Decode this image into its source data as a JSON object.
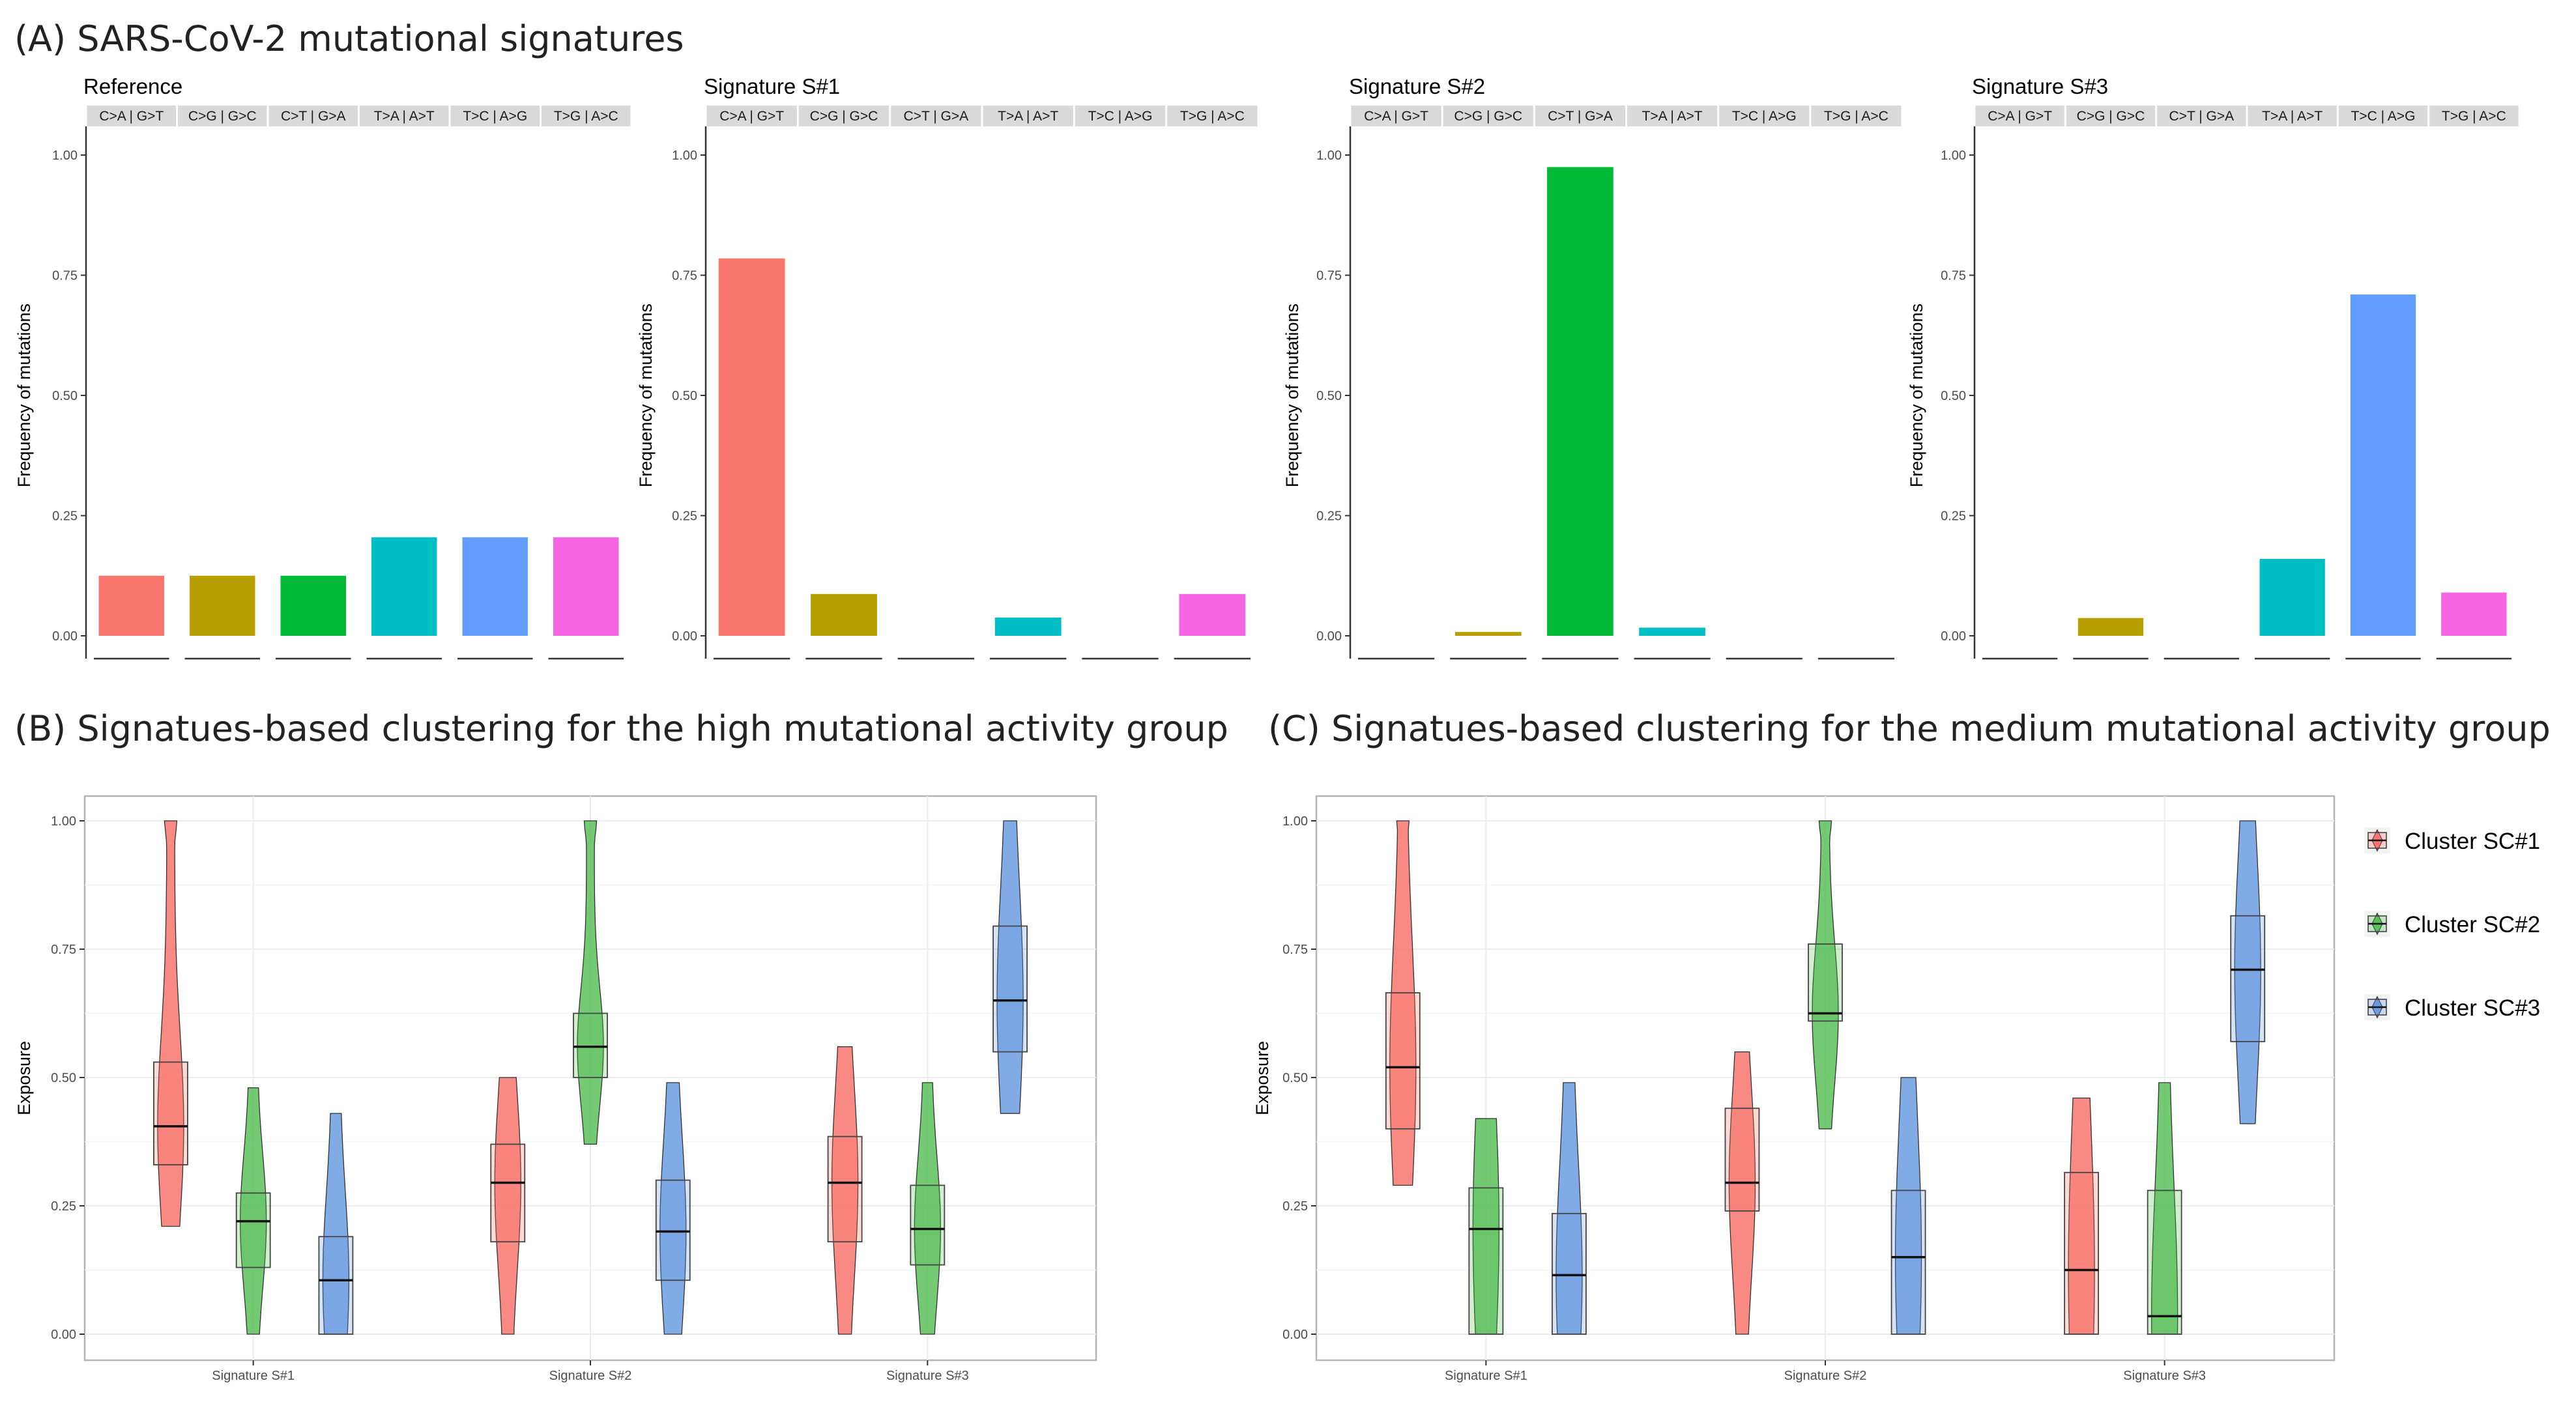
{
  "section_titles": {
    "a": "(A) SARS-CoV-2 mutational signatures",
    "b": "(B) Signatues-based clustering for the high mutational activity group",
    "c": "(C) Signatues-based clustering for the medium mutational activity group"
  },
  "colors": {
    "bars": [
      "#F8766D",
      "#B79F00",
      "#00BA38",
      "#00BFC4",
      "#619CFF",
      "#F564E3"
    ],
    "clusters": [
      "#F8766D",
      "#5BC15B",
      "#6A9CE0"
    ]
  },
  "chart_data": [
    {
      "type": "bar",
      "title": "Reference",
      "ylabel": "Frequency of mutations",
      "ylim": [
        0,
        1
      ],
      "yticks": [
        "0.00",
        "0.25",
        "0.50",
        "0.75",
        "1.00"
      ],
      "categories": [
        "C>A | G>T",
        "C>G | G>C",
        "C>T | G>A",
        "T>A | A>T",
        "T>C | A>G",
        "T>G | A>C"
      ],
      "values": [
        0.125,
        0.125,
        0.125,
        0.205,
        0.205,
        0.205
      ]
    },
    {
      "type": "bar",
      "title": "Signature S#1",
      "ylabel": "Frequency of mutations",
      "ylim": [
        0,
        1
      ],
      "yticks": [
        "0.00",
        "0.25",
        "0.50",
        "0.75",
        "1.00"
      ],
      "categories": [
        "C>A | G>T",
        "C>G | G>C",
        "C>T | G>A",
        "T>A | A>T",
        "T>C | A>G",
        "T>G | A>C"
      ],
      "values": [
        0.785,
        0.087,
        0.0,
        0.038,
        0.0,
        0.087
      ]
    },
    {
      "type": "bar",
      "title": "Signature S#2",
      "ylabel": "Frequency of mutations",
      "ylim": [
        0,
        1
      ],
      "yticks": [
        "0.00",
        "0.25",
        "0.50",
        "0.75",
        "1.00"
      ],
      "categories": [
        "C>A | G>T",
        "C>G | G>C",
        "C>T | G>A",
        "T>A | A>T",
        "T>C | A>G",
        "T>G | A>C"
      ],
      "values": [
        0.0,
        0.008,
        0.975,
        0.017,
        0.0,
        0.0
      ]
    },
    {
      "type": "bar",
      "title": "Signature S#3",
      "ylabel": "Frequency of mutations",
      "ylim": [
        0,
        1
      ],
      "yticks": [
        "0.00",
        "0.25",
        "0.50",
        "0.75",
        "1.00"
      ],
      "categories": [
        "C>A | G>T",
        "C>G | G>C",
        "C>T | G>A",
        "T>A | A>T",
        "T>C | A>G",
        "T>G | A>C"
      ],
      "values": [
        0.0,
        0.037,
        0.0,
        0.16,
        0.71,
        0.09
      ]
    },
    {
      "type": "violin",
      "panel": "high",
      "ylabel": "Exposure",
      "ylim": [
        0,
        1
      ],
      "yticks": [
        "0.00",
        "0.25",
        "0.50",
        "0.75",
        "1.00"
      ],
      "categories": [
        "Signature S#1",
        "Signature S#2",
        "Signature S#3"
      ],
      "clusters": [
        "Cluster SC#1",
        "Cluster SC#2",
        "Cluster SC#3"
      ],
      "series": [
        {
          "name": "Cluster SC#1",
          "boxes": [
            {
              "min": 0.21,
              "q1": 0.33,
              "median": 0.405,
              "q3": 0.53,
              "max": 1.0
            },
            {
              "min": 0.0,
              "q1": 0.18,
              "median": 0.295,
              "q3": 0.37,
              "max": 0.5
            },
            {
              "min": 0.0,
              "q1": 0.18,
              "median": 0.295,
              "q3": 0.385,
              "max": 0.56
            }
          ]
        },
        {
          "name": "Cluster SC#2",
          "boxes": [
            {
              "min": 0.0,
              "q1": 0.13,
              "median": 0.22,
              "q3": 0.275,
              "max": 0.48
            },
            {
              "min": 0.37,
              "q1": 0.5,
              "median": 0.56,
              "q3": 0.625,
              "max": 1.0
            },
            {
              "min": 0.0,
              "q1": 0.135,
              "median": 0.205,
              "q3": 0.29,
              "max": 0.49
            }
          ]
        },
        {
          "name": "Cluster SC#3",
          "boxes": [
            {
              "min": 0.0,
              "q1": 0.0,
              "median": 0.105,
              "q3": 0.19,
              "max": 0.43
            },
            {
              "min": 0.0,
              "q1": 0.105,
              "median": 0.2,
              "q3": 0.3,
              "max": 0.49
            },
            {
              "min": 0.43,
              "q1": 0.55,
              "median": 0.65,
              "q3": 0.795,
              "max": 1.0
            }
          ]
        }
      ]
    },
    {
      "type": "violin",
      "panel": "medium",
      "ylabel": "Exposure",
      "ylim": [
        0,
        1
      ],
      "yticks": [
        "0.00",
        "0.25",
        "0.50",
        "0.75",
        "1.00"
      ],
      "categories": [
        "Signature S#1",
        "Signature S#2",
        "Signature S#3"
      ],
      "clusters": [
        "Cluster SC#1",
        "Cluster SC#2",
        "Cluster SC#3"
      ],
      "series": [
        {
          "name": "Cluster SC#1",
          "boxes": [
            {
              "min": 0.29,
              "q1": 0.4,
              "median": 0.52,
              "q3": 0.665,
              "max": 1.0
            },
            {
              "min": 0.0,
              "q1": 0.24,
              "median": 0.295,
              "q3": 0.44,
              "max": 0.55
            },
            {
              "min": 0.0,
              "q1": 0.0,
              "median": 0.125,
              "q3": 0.315,
              "max": 0.46
            }
          ]
        },
        {
          "name": "Cluster SC#2",
          "boxes": [
            {
              "min": 0.0,
              "q1": 0.0,
              "median": 0.205,
              "q3": 0.285,
              "max": 0.42
            },
            {
              "min": 0.4,
              "q1": 0.61,
              "median": 0.625,
              "q3": 0.76,
              "max": 1.0
            },
            {
              "min": 0.0,
              "q1": 0.0,
              "median": 0.035,
              "q3": 0.28,
              "max": 0.49
            }
          ]
        },
        {
          "name": "Cluster SC#3",
          "boxes": [
            {
              "min": 0.0,
              "q1": 0.0,
              "median": 0.115,
              "q3": 0.235,
              "max": 0.49
            },
            {
              "min": 0.0,
              "q1": 0.0,
              "median": 0.15,
              "q3": 0.28,
              "max": 0.5
            },
            {
              "min": 0.41,
              "q1": 0.57,
              "median": 0.71,
              "q3": 0.815,
              "max": 1.0
            }
          ]
        }
      ]
    }
  ]
}
